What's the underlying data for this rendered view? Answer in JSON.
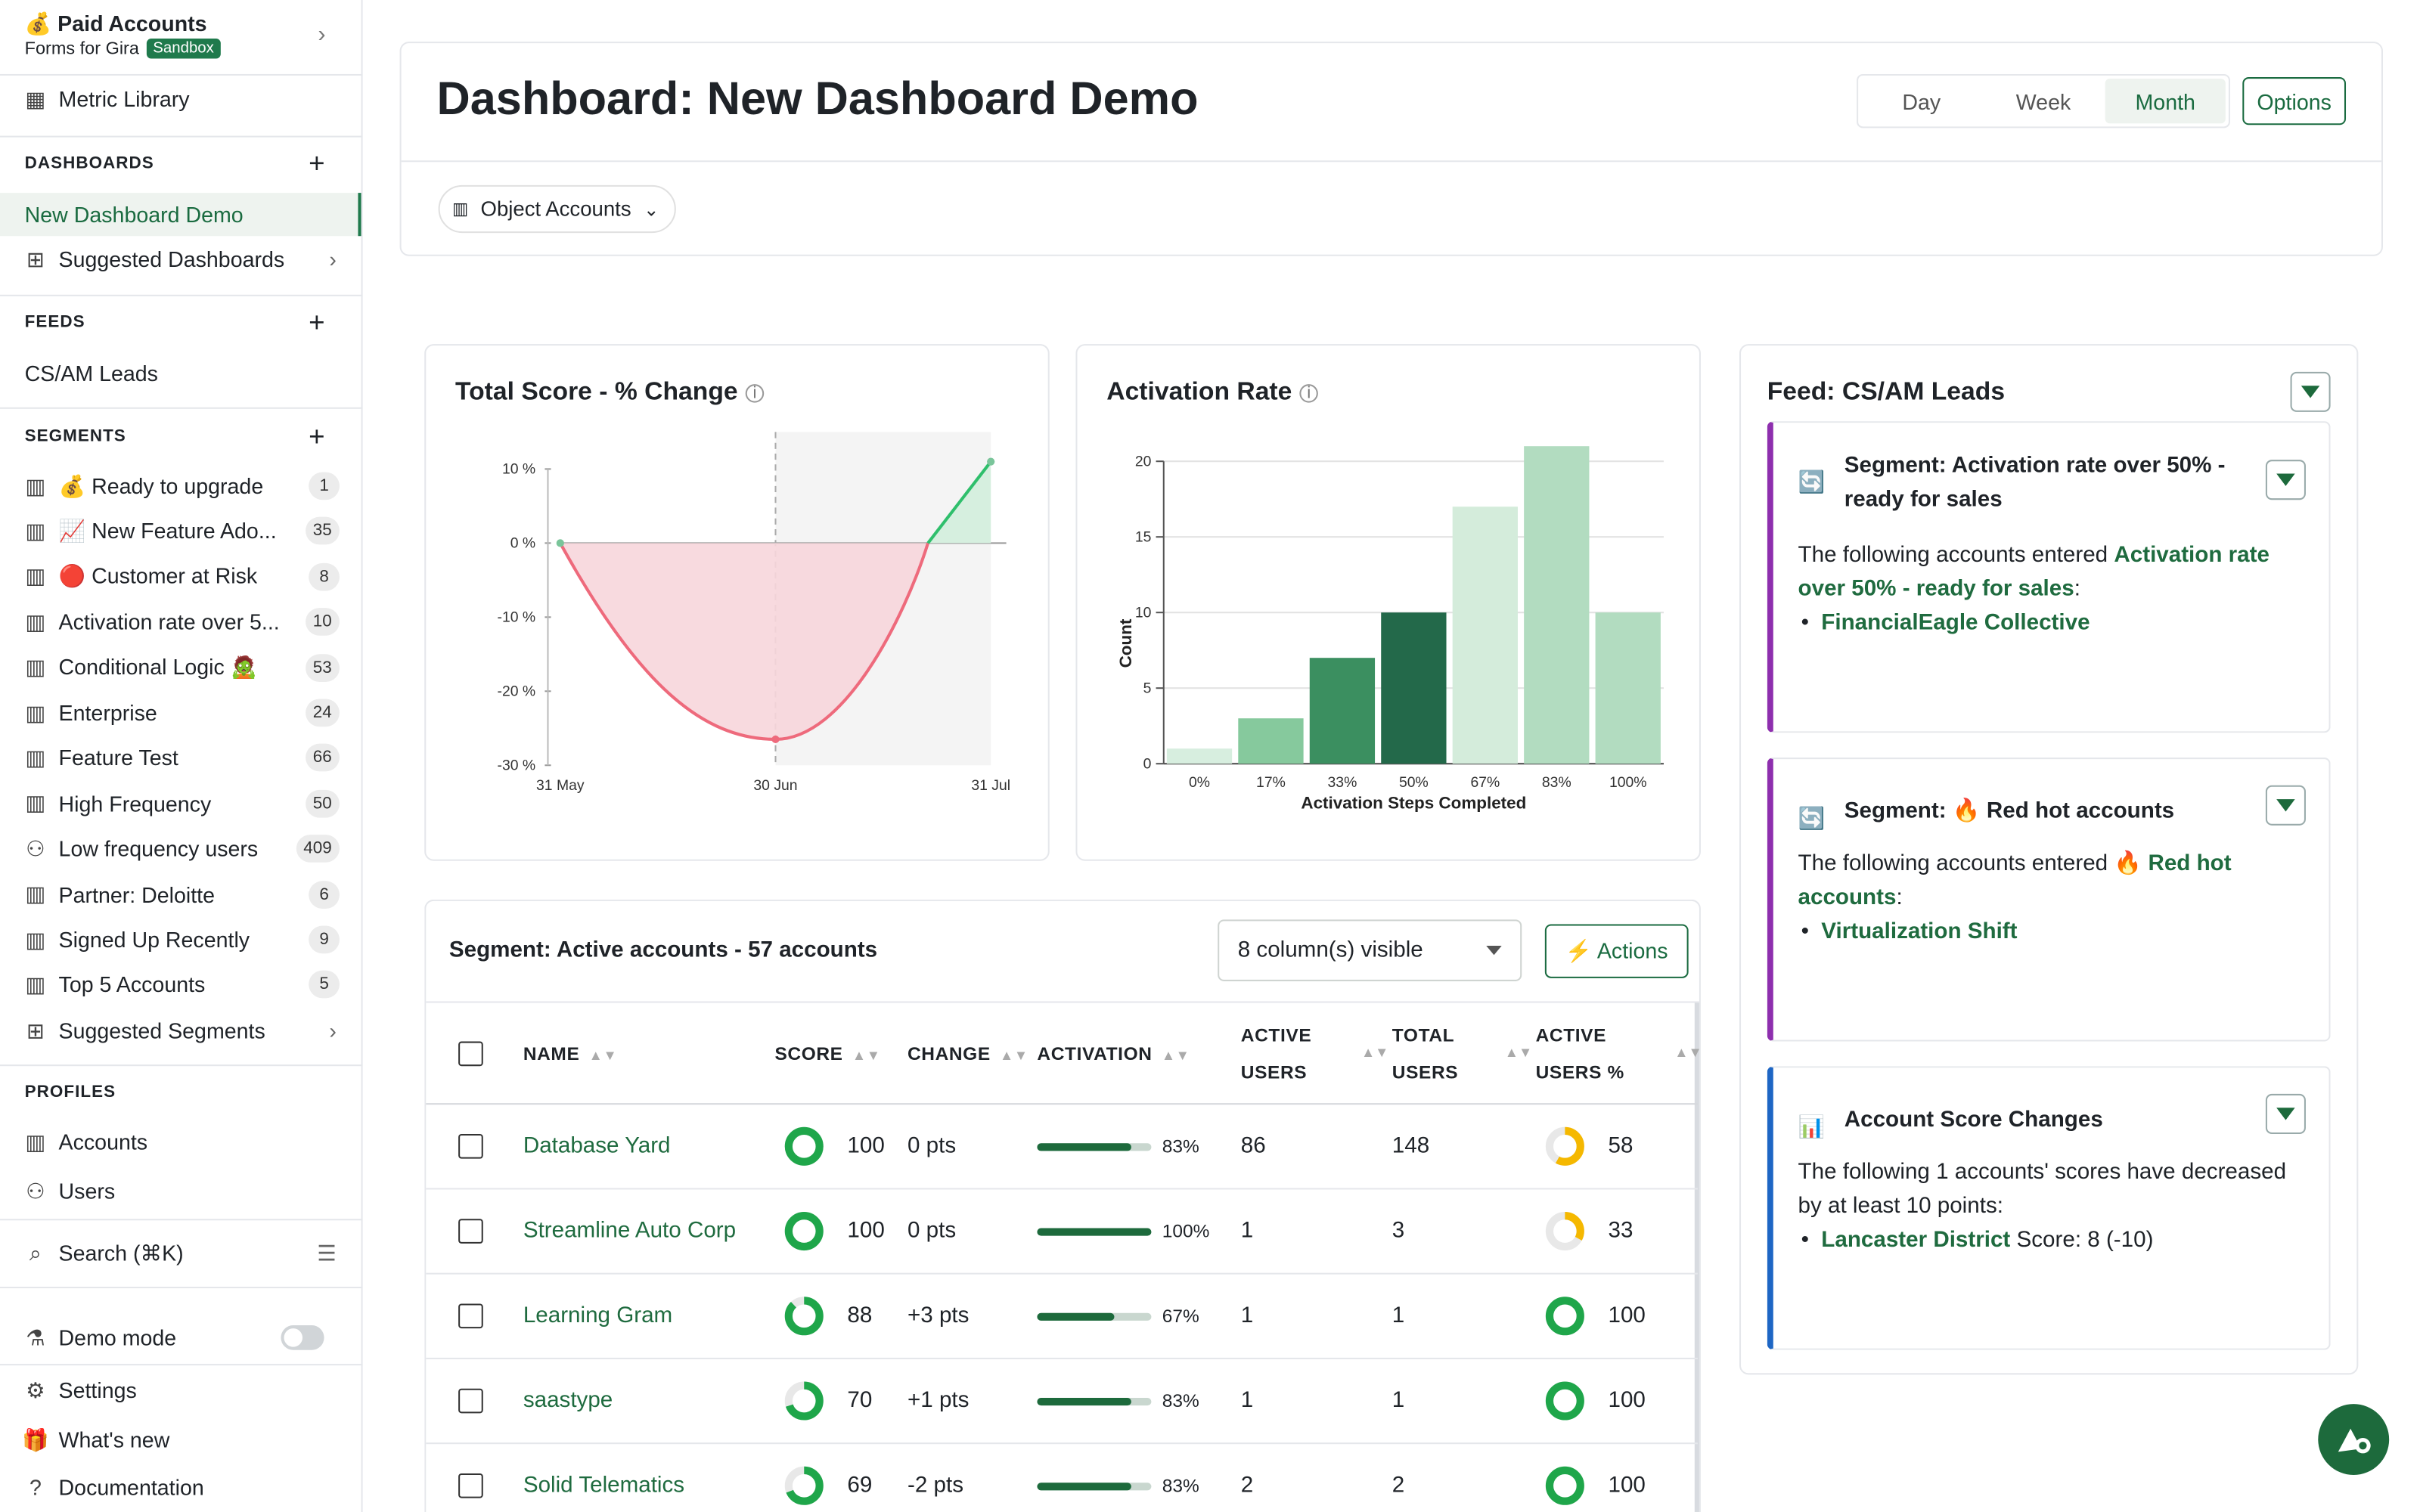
{
  "workspace": {
    "icon": "💰",
    "name": "Paid Accounts",
    "sub": "Forms for Gira",
    "badge": "Sandbox"
  },
  "sidebar": {
    "metric_library": "Metric Library",
    "dashboards_head": "DASHBOARDS",
    "dashboards": [
      "New Dashboard Demo",
      "Suggested Dashboards"
    ],
    "feeds_head": "FEEDS",
    "feeds": [
      "CS/AM Leads"
    ],
    "segments_head": "SEGMENTS",
    "segments": [
      {
        "label": "💰 Ready to upgrade",
        "count": "1"
      },
      {
        "label": "📈 New Feature Ado...",
        "count": "35"
      },
      {
        "label": "🔴 Customer at Risk",
        "count": "8"
      },
      {
        "label": "Activation rate over 5...",
        "count": "10"
      },
      {
        "label": "Conditional Logic 🧟",
        "count": "53"
      },
      {
        "label": "Enterprise",
        "count": "24"
      },
      {
        "label": "Feature Test",
        "count": "66"
      },
      {
        "label": "High Frequency",
        "count": "50"
      },
      {
        "label": "Low frequency users",
        "count": "409"
      },
      {
        "label": "Partner: Deloitte",
        "count": "6"
      },
      {
        "label": "Signed Up Recently",
        "count": "9"
      },
      {
        "label": "Top 5 Accounts",
        "count": "5"
      }
    ],
    "suggested_segments": "Suggested Segments",
    "profiles_head": "PROFILES",
    "profiles": [
      "Accounts",
      "Users"
    ],
    "search": "Search (⌘K)",
    "demo_mode": "Demo mode",
    "settings": "Settings",
    "whats_new": "What's new",
    "documentation": "Documentation"
  },
  "header": {
    "title": "Dashboard: New Dashboard Demo",
    "periods": [
      "Day",
      "Week",
      "Month"
    ],
    "active_period": "Month",
    "options": "Options",
    "filter": "Object Accounts"
  },
  "score_chart": {
    "title": "Total Score - % Change"
  },
  "activation_chart": {
    "title": "Activation Rate"
  },
  "chart_data": [
    {
      "type": "line",
      "title": "Total Score - % Change",
      "x": [
        "31 May",
        "30 Jun",
        "31 Jul"
      ],
      "y_ticks": [
        "10 %",
        "0 %",
        "-10 %",
        "-20 %",
        "-30 %"
      ],
      "ylim": [
        -30,
        10
      ],
      "series": [
        {
          "points": [
            [
              0,
              0
            ],
            [
              0.5,
              -26.5
            ],
            [
              1,
              11
            ]
          ]
        }
      ]
    },
    {
      "type": "bar",
      "title": "Activation Rate",
      "xlabel": "Activation Steps Completed",
      "ylabel": "Count",
      "categories": [
        "0%",
        "17%",
        "33%",
        "50%",
        "67%",
        "83%",
        "100%"
      ],
      "values": [
        1,
        3,
        7,
        10,
        17,
        21,
        10
      ],
      "ylim": [
        0,
        20
      ],
      "y_ticks": [
        "0",
        "5",
        "10",
        "15",
        "20"
      ]
    }
  ],
  "table": {
    "title": "Segment: Active accounts - 57 accounts",
    "columns_visible": "8 column(s) visible",
    "actions": "⚡ Actions",
    "headers": [
      "NAME",
      "SCORE",
      "CHANGE",
      "ACTIVATION",
      "ACTIVE USERS",
      "TOTAL USERS",
      "ACTIVE USERS %"
    ],
    "rows": [
      {
        "name": "Database Yard",
        "score": "100",
        "change": "0 pts",
        "activation": "83%",
        "act": 0.83,
        "active": "86",
        "total": "148",
        "pct": "58",
        "pctv": 0.58
      },
      {
        "name": "Streamline Auto Corp",
        "score": "100",
        "change": "0 pts",
        "activation": "100%",
        "act": 1.0,
        "active": "1",
        "total": "3",
        "pct": "33",
        "pctv": 0.33
      },
      {
        "name": "Learning Gram",
        "score": "88",
        "change": "+3 pts",
        "activation": "67%",
        "act": 0.67,
        "active": "1",
        "total": "1",
        "pct": "100",
        "pctv": 1.0
      },
      {
        "name": "saastype",
        "score": "70",
        "change": "+1 pts",
        "activation": "83%",
        "act": 0.83,
        "active": "1",
        "total": "1",
        "pct": "100",
        "pctv": 1.0
      },
      {
        "name": "Solid Telematics",
        "score": "69",
        "change": "-2 pts",
        "activation": "83%",
        "act": 0.83,
        "active": "2",
        "total": "2",
        "pct": "100",
        "pctv": 1.0
      }
    ]
  },
  "feed": {
    "title": "Feed: CS/AM Leads",
    "cards": [
      {
        "title": "Segment: Activation rate over 50% - ready for sales",
        "text": "The following accounts entered ",
        "link": "Activation rate over 50% - ready for sales",
        "after": ":",
        "item": "FinancialEagle Collective",
        "color": "#8e2fae"
      },
      {
        "title": "Segment: 🔥 Red hot accounts",
        "text": "The following accounts entered ",
        "link": "🔥 Red hot accounts",
        "after": ":",
        "item": "Virtualization Shift",
        "color": "#8e2fae"
      },
      {
        "title": "Account Score Changes",
        "text": "The following 1 accounts' scores have decreased by at least 10 points:",
        "item": "Lancaster District",
        "item_after": " Score: 8 (-10)",
        "color": "#1e66c4"
      }
    ]
  }
}
